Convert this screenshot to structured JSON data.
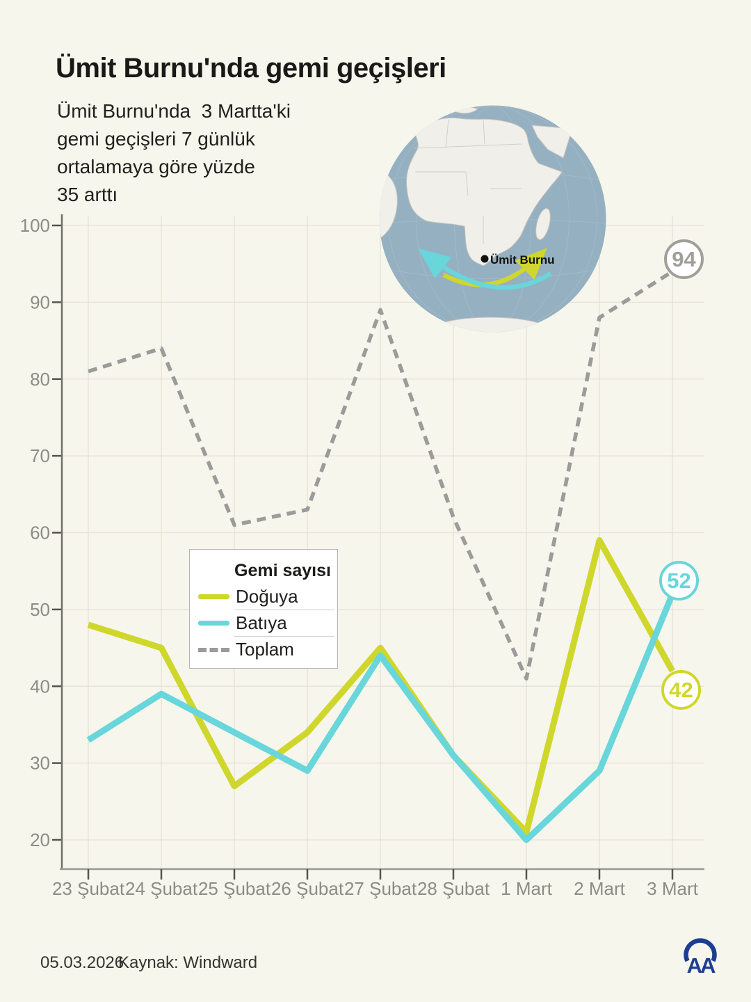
{
  "header": {
    "title": "Ümit Burnu'nda gemi geçişleri",
    "subtitle_lines": {
      "0": "Ümit Burnu'nda  3 Martta'ki",
      "1": "gemi geçişleri 7 günlük",
      "2": "ortalamaya göre yüzde",
      "3": "35 arttı"
    }
  },
  "globe": {
    "location_label": "Ümit Burnu",
    "ocean_color": "#95b0c1",
    "land_color": "#f1efe9",
    "eastward_arrow_color": "#cfd72c",
    "westward_arrow_color": "#68d6db"
  },
  "chart_data": {
    "type": "line",
    "categories": [
      "23 Şubat",
      "24 Şubat",
      "25 Şubat",
      "26 Şubat",
      "27 Şubat",
      "28 Şubat",
      "1 Mart",
      "2 Mart",
      "3 Mart"
    ],
    "series": [
      {
        "id": "doguya",
        "name": "Doğuya",
        "color": "#cfd72c",
        "dash": false,
        "values": [
          48,
          45,
          27,
          34,
          45,
          31,
          21,
          59,
          42
        ],
        "end_label": "42"
      },
      {
        "id": "batiya",
        "name": "Batıya",
        "color": "#68d6db",
        "dash": false,
        "values": [
          33,
          39,
          34,
          29,
          44,
          31,
          20,
          29,
          52
        ],
        "end_label": "52"
      },
      {
        "id": "toplam",
        "name": "Toplam",
        "color": "#9b9b99",
        "dash": true,
        "values": [
          81,
          84,
          61,
          63,
          89,
          62,
          41,
          88,
          94
        ],
        "end_label": "94"
      }
    ],
    "y_ticks": [
      100,
      90,
      80,
      70,
      60,
      50,
      40,
      30,
      20
    ],
    "ylim": [
      20,
      100
    ],
    "xlabel": "",
    "ylabel": "",
    "grid": true,
    "legend": {
      "title": "Gemi sayısı",
      "position": "center-left"
    }
  },
  "footer": {
    "date": "05.03.2026",
    "source": "Kaynak: Windward"
  },
  "logo": {
    "text": "AA",
    "color": "#1d3d91"
  },
  "colors": {
    "background": "#f7f6ec",
    "gridline": "#e5e2d4",
    "axis_label": "#8d8c84",
    "badge_gray": "#a19f9a"
  }
}
